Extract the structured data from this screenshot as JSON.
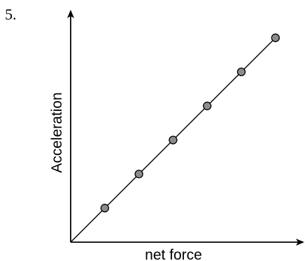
{
  "question_number": "5.",
  "chart_data": {
    "type": "scatter",
    "title": "",
    "xlabel": "net force",
    "ylabel": "Acceleration",
    "grid": false,
    "legend": "none",
    "has_numeric_ticks": false,
    "fit_line": "straight line through the origin",
    "x": [
      1,
      2,
      3,
      4,
      5,
      6
    ],
    "y": [
      1,
      2,
      3,
      4,
      5,
      6
    ],
    "xlim": [
      0,
      6.5
    ],
    "ylim": [
      0,
      6.5
    ],
    "colors": {
      "axis": "#000000",
      "line": "#000000",
      "marker_fill": "#8c8c8c",
      "marker_stroke": "#000000"
    }
  }
}
